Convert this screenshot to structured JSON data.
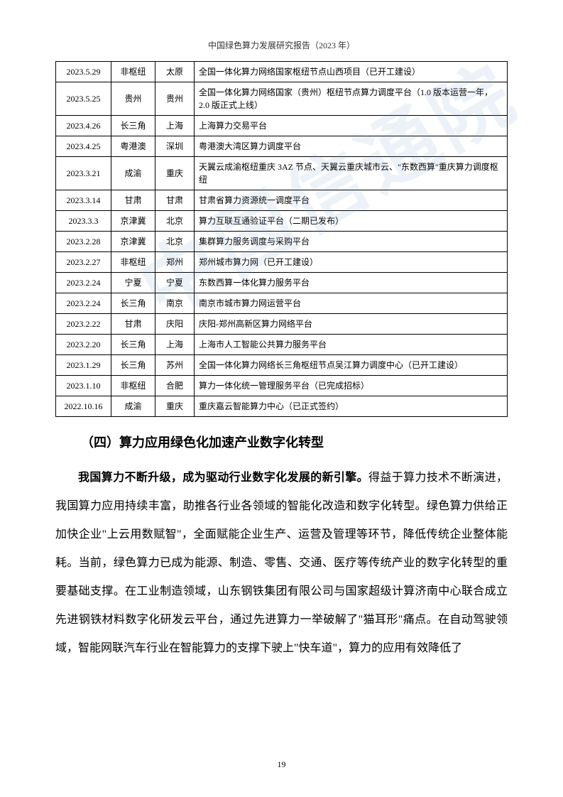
{
  "header": {
    "title": "中国绿色算力发展研究报告（2023 年）"
  },
  "watermark": "中国信通院",
  "table": {
    "columns": [
      "date",
      "region",
      "city",
      "description"
    ],
    "rows": [
      [
        "2023.5.29",
        "非枢纽",
        "太原",
        "全国一体化算力网络国家枢纽节点山西项目（已开工建设）"
      ],
      [
        "2023.5.25",
        "贵州",
        "贵州",
        "全国一体化算力网络国家（贵州）枢纽节点算力调度平台（1.0 版本运营一年，2.0 版正式上线）"
      ],
      [
        "2023.4.26",
        "长三角",
        "上海",
        "上海算力交易平台"
      ],
      [
        "2023.4.25",
        "粤港澳",
        "深圳",
        "粤港澳大湾区算力调度平台"
      ],
      [
        "2023.3.21",
        "成渝",
        "重庆",
        "天翼云成渝枢纽重庆 3AZ 节点、天翼云重庆城市云、\"东数西算\"重庆算力调度枢纽"
      ],
      [
        "2023.3.14",
        "甘肃",
        "甘肃",
        "甘肃省算力资源统一调度平台"
      ],
      [
        "2023.3.3",
        "京津冀",
        "北京",
        "算力互联互通验证平台（二期已发布）"
      ],
      [
        "2023.2.28",
        "京津冀",
        "北京",
        "集群算力服务调度与采购平台"
      ],
      [
        "2023.2.27",
        "非枢纽",
        "郑州",
        "郑州城市算力网（已开工建设）"
      ],
      [
        "2023.2.24",
        "宁夏",
        "宁夏",
        "东数西算一体化算力服务平台"
      ],
      [
        "2023.2.24",
        "长三角",
        "南京",
        "南京市城市算力网运营平台"
      ],
      [
        "2023.2.22",
        "甘肃",
        "庆阳",
        "庆阳-郑州高新区算力网络平台"
      ],
      [
        "2023.2.20",
        "长三角",
        "上海",
        "上海市人工智能公共算力服务平台"
      ],
      [
        "2023.1.29",
        "长三角",
        "苏州",
        "全国一体化算力网络长三角枢纽节点吴江算力调度中心（已开工建设）"
      ],
      [
        "2023.1.10",
        "非枢纽",
        "合肥",
        "算力一体化统一管理服务平台（已完成招标）"
      ],
      [
        "2022.10.16",
        "成渝",
        "重庆",
        "重庆嘉云智能算力中心（已正式签约）"
      ]
    ]
  },
  "section": {
    "heading": "（四）算力应用绿色化加速产业数字化转型",
    "lead_bold": "我国算力不断升级，成为驱动行业数字化发展的新引擎。",
    "body_rest": "得益于算力技术不断演进，我国算力应用持续丰富，助推各行业各领域的智能化改造和数字化转型。绿色算力供给正加快企业\"上云用数赋智\"，全面赋能企业生产、运营及管理等环节，降低传统企业整体能耗。当前，绿色算力已成为能源、制造、零售、交通、医疗等传统产业的数字化转型的重要基础支撑。在工业制造领域，山东钢铁集团有限公司与国家超级计算济南中心联合成立先进钢铁材料数字化研发云平台，通过先进算力一举破解了\"猫耳形\"痛点。在自动驾驶领域，智能网联汽车行业在智能算力的支撑下驶上\"快车道\"，算力的应用有效降低了"
  },
  "page_number": "19"
}
